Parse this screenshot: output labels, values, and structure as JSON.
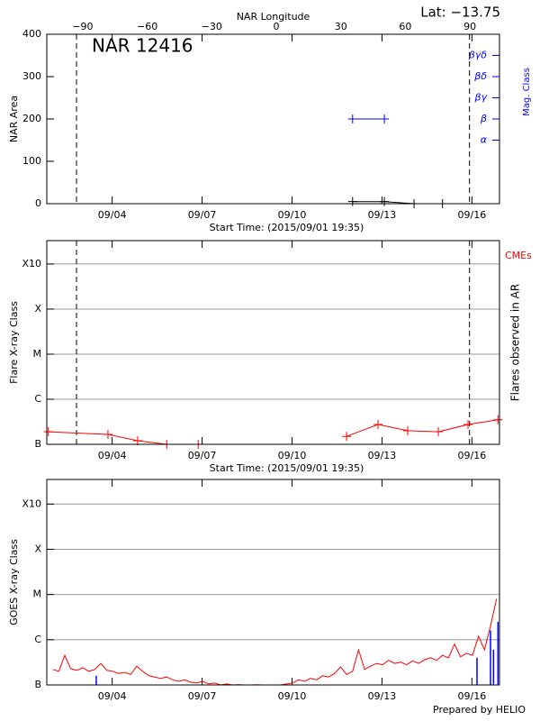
{
  "title": "Lat: −13.75",
  "credit": "Prepared by HELIO",
  "chart_data": [
    {
      "type": "line",
      "annotation": "NAR 12416",
      "ylabel": "NAR Area",
      "xlabel": "Start Time: (2015/09/01 19:35)",
      "x2label": "NAR Longitude",
      "y2label": "Mag. Class",
      "xlim": [
        0,
        15.1
      ],
      "xticks": [
        {
          "value": 2.18,
          "label": "09/04"
        },
        {
          "value": 5.18,
          "label": "09/07"
        },
        {
          "value": 8.18,
          "label": "09/10"
        },
        {
          "value": 11.18,
          "label": "09/13"
        },
        {
          "value": 14.18,
          "label": "09/16"
        }
      ],
      "x2lim": [
        -106.7,
        103.75
      ],
      "x2ticks": [
        {
          "value": -90,
          "label": "−90"
        },
        {
          "value": -60,
          "label": "−60"
        },
        {
          "value": -30,
          "label": "−30"
        },
        0,
        30,
        60,
        90
      ],
      "ylim": [
        0,
        400
      ],
      "yticks": [
        0,
        100,
        200,
        300,
        400
      ],
      "y2lim": [
        0,
        8
      ],
      "y2ticks": [
        {
          "value": 3,
          "label": "α"
        },
        {
          "value": 4,
          "label": "β"
        },
        {
          "value": 5,
          "label": "βγ"
        },
        {
          "value": 6,
          "label": "βδ"
        },
        {
          "value": 7,
          "label": "βγδ"
        }
      ],
      "vlines": [
        0.99,
        14.1
      ],
      "grid": false,
      "series": [
        {
          "x": [
            10.2,
            11.26,
            12.25,
            13.2
          ],
          "values": [
            5,
            5,
            0,
            0
          ],
          "color": "#000000",
          "marker": "+"
        },
        {
          "x": [
            10.2,
            11.26
          ],
          "values": [
            4,
            4
          ],
          "color": "#0000ff",
          "marker": "+",
          "axis": "y2"
        }
      ]
    },
    {
      "type": "line",
      "ylabel": "Flare X-ray Class",
      "xlabel": "Start Time: (2015/09/01 19:35)",
      "y2label": "Flares observed in AR",
      "annotation": "CMEs",
      "xlim": [
        0,
        15.1
      ],
      "xticks": [
        {
          "value": 2.18,
          "label": "09/04"
        },
        {
          "value": 5.18,
          "label": "09/07"
        },
        {
          "value": 8.18,
          "label": "09/10"
        },
        {
          "value": 11.18,
          "label": "09/13"
        },
        {
          "value": 14.18,
          "label": "09/16"
        }
      ],
      "log_y": true,
      "ylim": [
        1e-07,
        0.0033
      ],
      "yticks": [
        {
          "value": 1e-07,
          "label": "B"
        },
        {
          "value": 1e-06,
          "label": "C"
        },
        {
          "value": 1e-05,
          "label": "M"
        },
        {
          "value": 0.0001,
          "label": "X"
        },
        {
          "value": 0.001,
          "label": "X10"
        }
      ],
      "vlines": [
        0.99,
        14.1
      ],
      "grid": true,
      "series": [
        {
          "x": [
            0.05,
            2.04,
            3.03,
            4.0,
            5.05,
            7.5,
            10.0,
            11.05,
            12.04,
            13.06,
            14.05,
            15.05
          ],
          "values": [
            1.9e-07,
            1.66e-07,
            1.2e-07,
            1e-07,
            1e-07,
            null,
            1.5e-07,
            2.75e-07,
            2e-07,
            1.9e-07,
            2.75e-07,
            3.5e-07
          ],
          "color": "#ff0000",
          "marker": "+"
        }
      ]
    },
    {
      "type": "line",
      "ylabel": "GOES X-ray Class",
      "xlim": [
        0,
        15.1
      ],
      "xticks": [
        {
          "value": 2.18,
          "label": "09/04"
        },
        {
          "value": 5.18,
          "label": "09/07"
        },
        {
          "value": 8.18,
          "label": "09/10"
        },
        {
          "value": 11.18,
          "label": "09/13"
        },
        {
          "value": 14.18,
          "label": "09/16"
        }
      ],
      "log_y": true,
      "ylim": [
        1e-07,
        0.0035
      ],
      "yticks": [
        {
          "value": 1e-07,
          "label": "B"
        },
        {
          "value": 1e-06,
          "label": "C"
        },
        {
          "value": 1e-05,
          "label": "M"
        },
        {
          "value": 0.0001,
          "label": "X"
        },
        {
          "value": 0.001,
          "label": "X10"
        }
      ],
      "grid": true,
      "series": [
        {
          "x": [
            0.2,
            0.4,
            0.6,
            0.8,
            1.0,
            1.2,
            1.4,
            1.6,
            1.8,
            2.0,
            2.2,
            2.4,
            2.6,
            2.8,
            3.0,
            3.2,
            3.4,
            3.6,
            3.8,
            4.0,
            4.2,
            4.4,
            4.6,
            4.8,
            5.0,
            5.2,
            5.4,
            5.6,
            5.8,
            6.0,
            6.2,
            6.4,
            6.6,
            6.8,
            7.0,
            7.2,
            7.4,
            7.6,
            7.8,
            8.0,
            8.2,
            8.4,
            8.6,
            8.8,
            9.0,
            9.2,
            9.4,
            9.6,
            9.8,
            10.0,
            10.2,
            10.4,
            10.6,
            10.8,
            11.0,
            11.2,
            11.4,
            11.6,
            11.8,
            12.0,
            12.2,
            12.4,
            12.6,
            12.8,
            13.0,
            13.2,
            13.4,
            13.6,
            13.8,
            14.0,
            14.2,
            14.4,
            14.6,
            14.8,
            15.0
          ],
          "values": [
            2.2e-07,
            2e-07,
            4.5e-07,
            2.3e-07,
            2.1e-07,
            2.4e-07,
            2e-07,
            2.2e-07,
            3e-07,
            2.1e-07,
            2e-07,
            1.8e-07,
            1.9e-07,
            1.7e-07,
            2.6e-07,
            2e-07,
            1.6e-07,
            1.5e-07,
            1.4e-07,
            1.5e-07,
            1.3e-07,
            1.2e-07,
            1.3e-07,
            1.15e-07,
            1.1e-07,
            1.2e-07,
            1.05e-07,
            1.1e-07,
            1e-07,
            1.05e-07,
            1e-07,
            1.02e-07,
            1e-07,
            1e-07,
            1.01e-07,
            1e-07,
            1e-07,
            1e-07,
            1e-07,
            1.05e-07,
            1.1e-07,
            1.3e-07,
            1.2e-07,
            1.4e-07,
            1.3e-07,
            1.6e-07,
            1.5e-07,
            1.8e-07,
            2.5e-07,
            1.7e-07,
            2e-07,
            6e-07,
            2.2e-07,
            2.6e-07,
            3e-07,
            2.8e-07,
            3.5e-07,
            3e-07,
            3.2e-07,
            2.8e-07,
            3.4e-07,
            3e-07,
            3.6e-07,
            4e-07,
            3.5e-07,
            4.5e-07,
            4e-07,
            8e-07,
            4.2e-07,
            5e-07,
            4.5e-07,
            1.2e-06,
            6e-07,
            2e-06,
            8e-06
          ],
          "color": "#ff0000"
        }
      ],
      "bars": {
        "x": [
          1.65,
          14.35,
          14.8,
          14.9,
          15.05
        ],
        "values": [
          1.6e-07,
          4e-07,
          1.6e-06,
          6e-07,
          2.5e-06
        ],
        "color": "#0000ff"
      }
    }
  ]
}
